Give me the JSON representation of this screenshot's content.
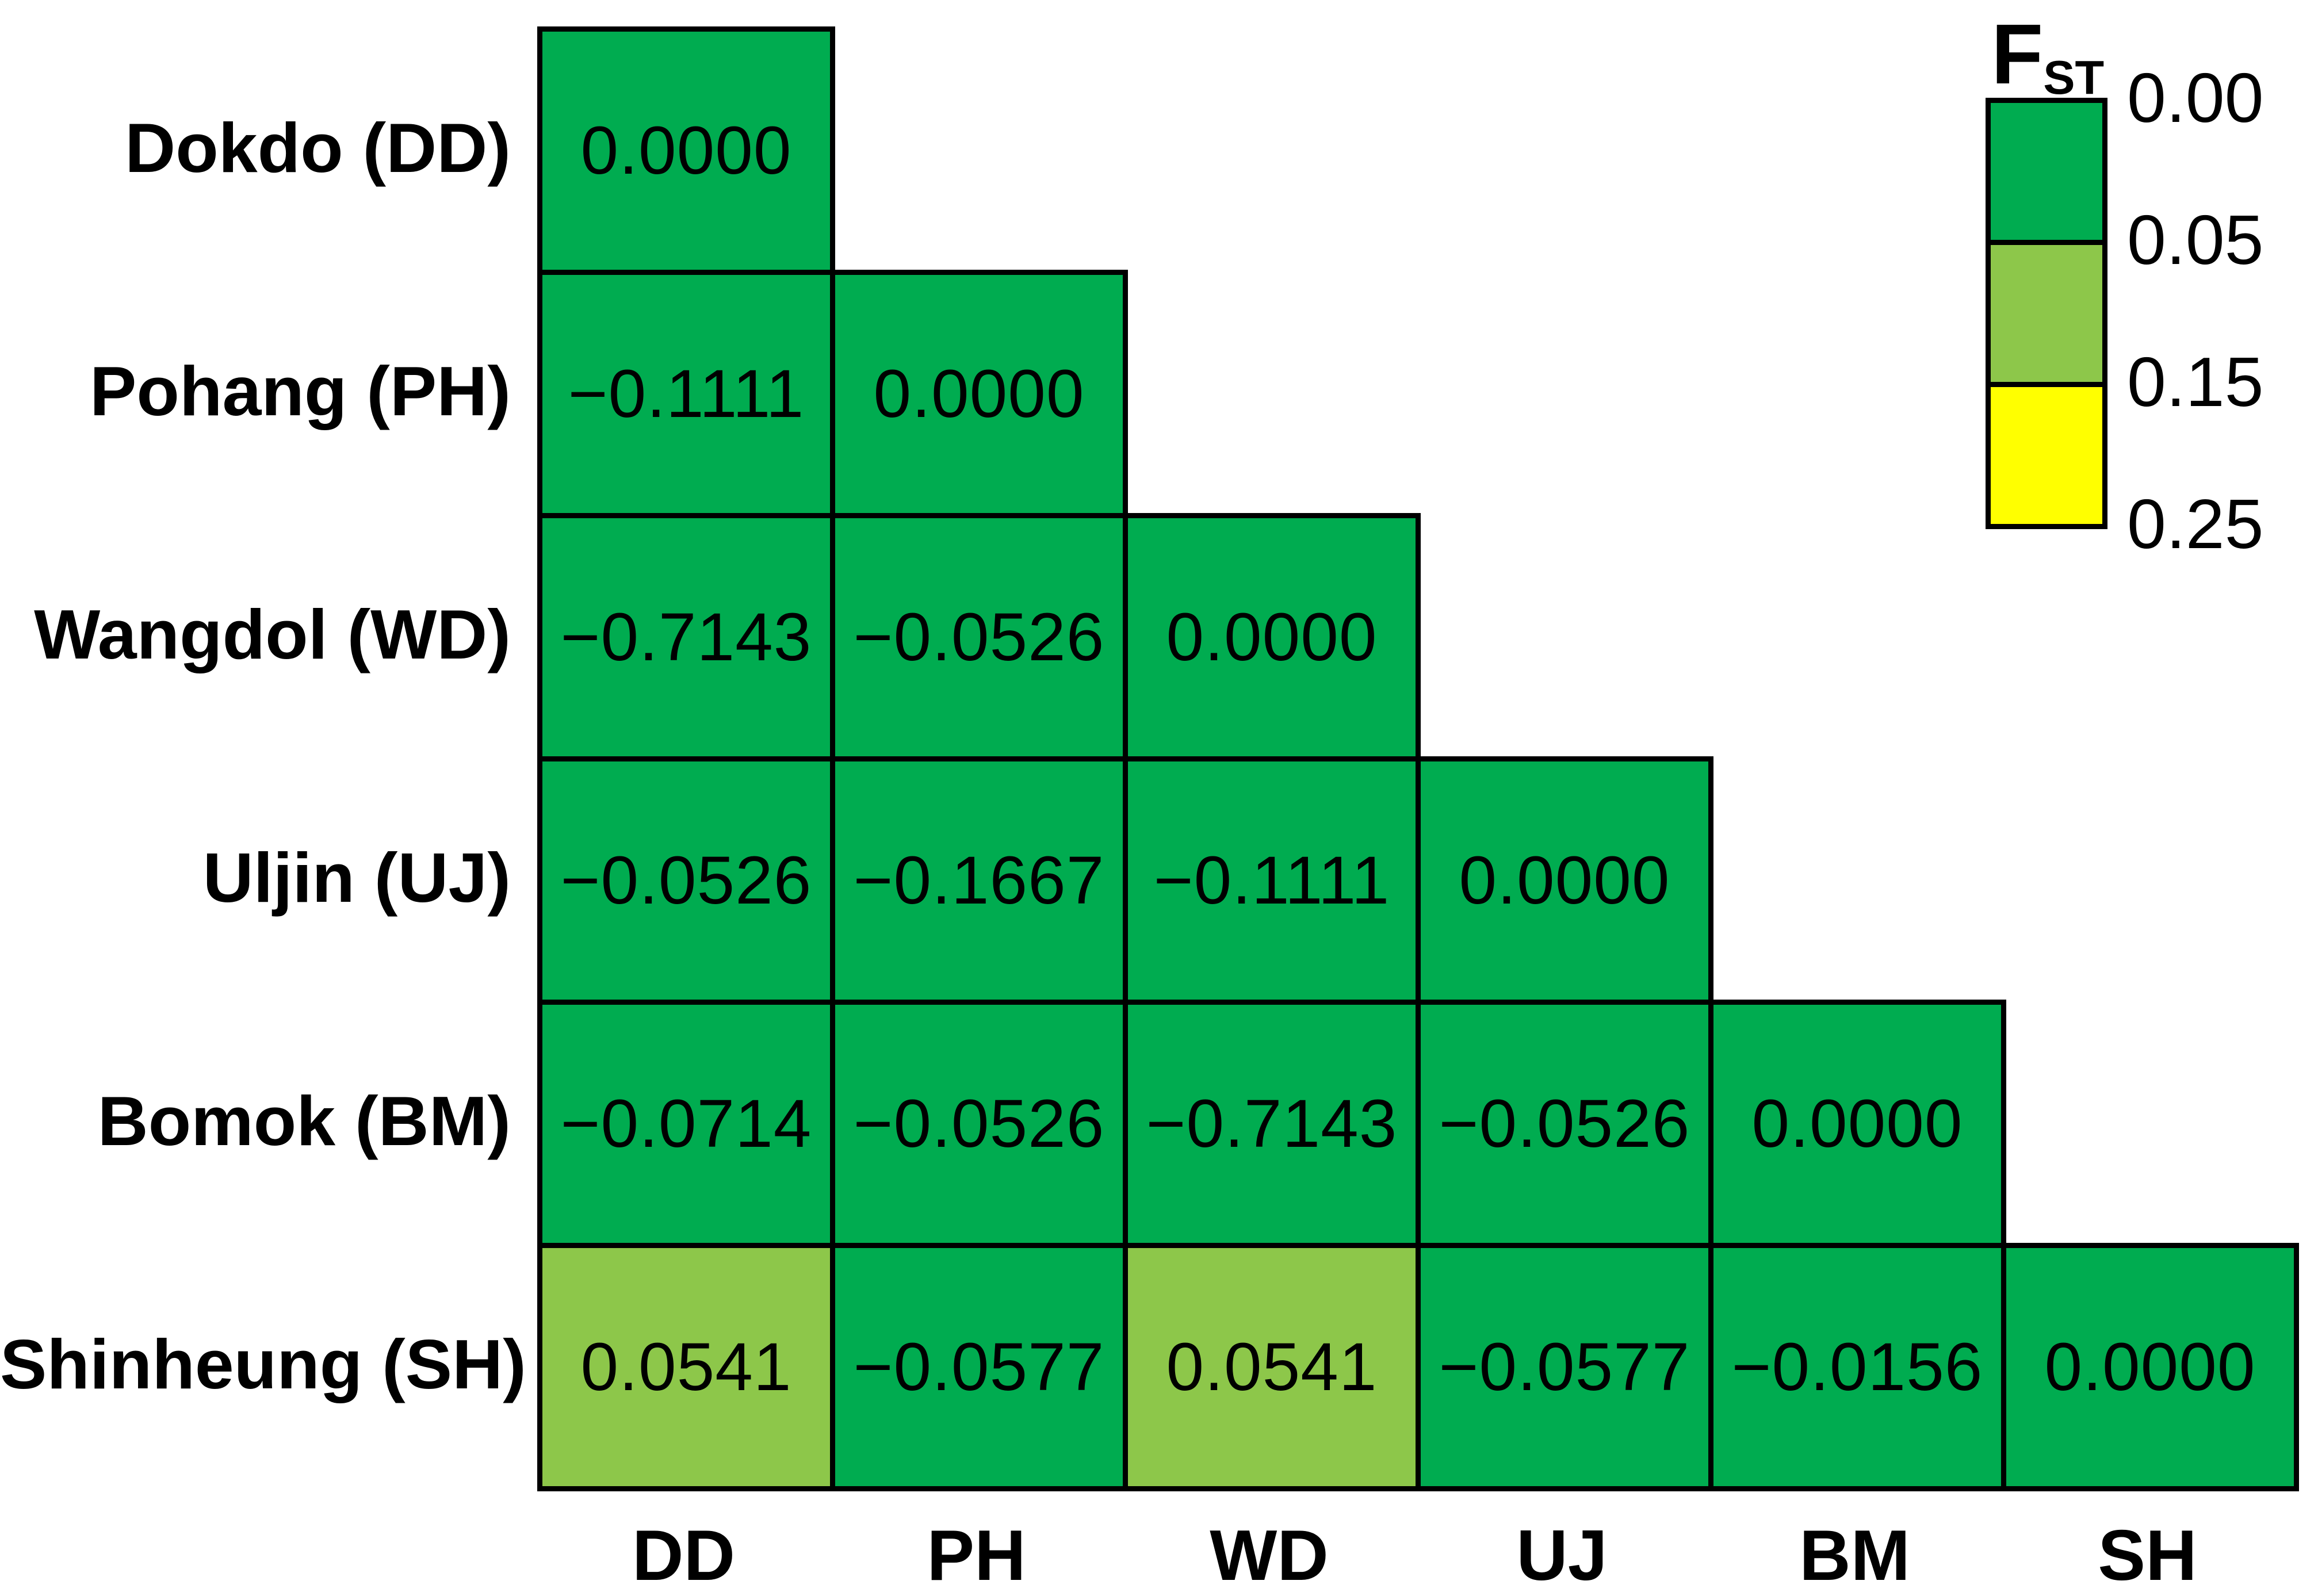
{
  "legend": {
    "title_main": "F",
    "title_sub": "ST"
  },
  "chart_data": {
    "type": "heatmap",
    "title": "",
    "rows": [
      "Dokdo (DD)",
      "Pohang (PH)",
      "Wangdol (WD)",
      "Uljin (UJ)",
      "Bomok (BM)",
      "Shinheung (SH)"
    ],
    "columns": [
      "DD",
      "PH",
      "WD",
      "UJ",
      "BM",
      "SH"
    ],
    "values": [
      [
        0.0,
        null,
        null,
        null,
        null,
        null
      ],
      [
        -0.1111,
        0.0,
        null,
        null,
        null,
        null
      ],
      [
        -0.7143,
        -0.0526,
        0.0,
        null,
        null,
        null
      ],
      [
        -0.0526,
        -0.1667,
        -0.1111,
        0.0,
        null,
        null
      ],
      [
        -0.0714,
        -0.0526,
        -0.7143,
        -0.0526,
        0.0,
        null
      ],
      [
        0.0541,
        -0.0577,
        0.0541,
        -0.0577,
        -0.0156,
        0.0
      ]
    ],
    "display": [
      [
        "0.0000",
        "",
        "",
        "",
        "",
        ""
      ],
      [
        "−0.1111",
        "0.0000",
        "",
        "",
        "",
        ""
      ],
      [
        "−0.7143",
        "−0.0526",
        "0.0000",
        "",
        "",
        ""
      ],
      [
        "−0.0526",
        "−0.1667",
        "−0.1111",
        "0.0000",
        "",
        ""
      ],
      [
        "−0.0714",
        "−0.0526",
        "−0.7143",
        "−0.0526",
        "0.0000",
        ""
      ],
      [
        "0.0541",
        "−0.0577",
        "0.0541",
        "−0.0577",
        "−0.0156",
        "0.0000"
      ]
    ],
    "color_scale": {
      "title": "FST",
      "breaks": [
        0.0,
        0.05,
        0.15,
        0.25
      ],
      "labels": [
        "0.00",
        "0.05",
        "0.15",
        "0.25"
      ],
      "colors": [
        "#00AC50",
        "#8DC74A",
        "#FFFF00"
      ]
    },
    "legend_position": "top-right",
    "cell_text_color": "#000000",
    "border_color": "#000000",
    "background": "#FFFFFF",
    "grid": false
  }
}
